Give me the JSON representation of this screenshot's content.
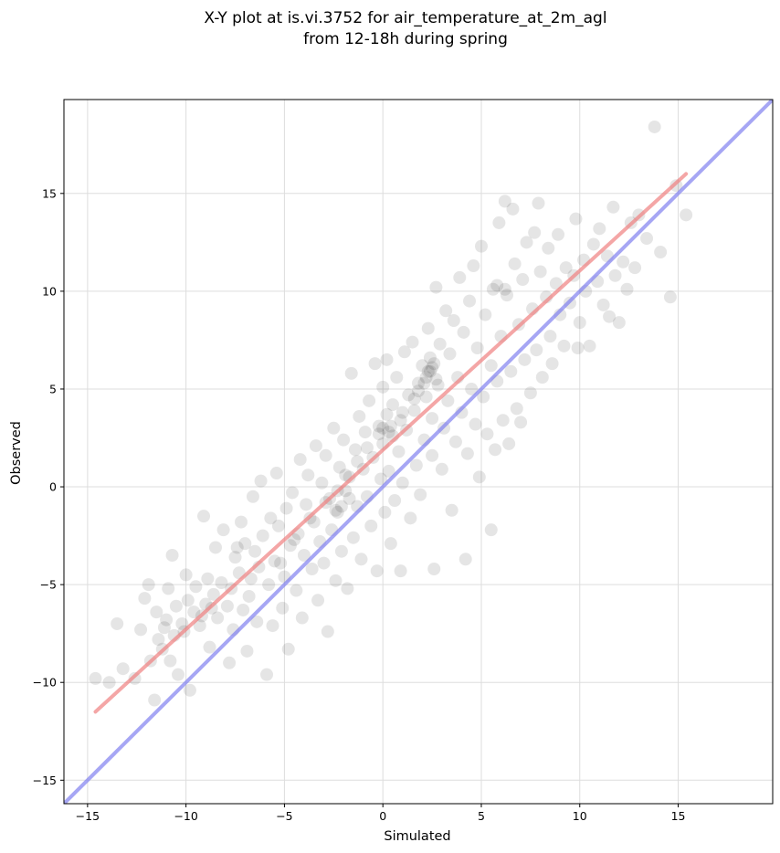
{
  "chart_data": {
    "type": "scatter",
    "title": "X-Y plot at is.vi.3752 for air_temperature_at_2m_agl",
    "subtitle": "from 12-18h during spring",
    "xlabel": "Simulated",
    "ylabel": "Observed",
    "xlim": [
      -16.2,
      19.8
    ],
    "ylim": [
      -16.2,
      19.8
    ],
    "x_ticks": [
      -15,
      -10,
      -5,
      0,
      5,
      10,
      15
    ],
    "y_ticks": [
      -15,
      -10,
      -5,
      0,
      5,
      10,
      15
    ],
    "x_tick_labels": [
      "−15",
      "−10",
      "−5",
      "0",
      "5",
      "10",
      "15"
    ],
    "y_tick_labels": [
      "−15",
      "−10",
      "−5",
      "0",
      "5",
      "10",
      "15"
    ],
    "grid": true,
    "legend": "none",
    "colors": {
      "points": "#000000",
      "fit_line": "#f08080",
      "identity_line": "#8080f0",
      "grid": "#dddddd"
    },
    "series": [
      {
        "kind": "points",
        "points": [
          [
            -14.6,
            -9.8
          ],
          [
            -13.9,
            -10.0
          ],
          [
            -13.5,
            -7.0
          ],
          [
            -13.2,
            -9.3
          ],
          [
            -12.6,
            -9.8
          ],
          [
            -12.3,
            -7.3
          ],
          [
            -12.1,
            -5.7
          ],
          [
            -11.9,
            -5.0
          ],
          [
            -11.8,
            -8.9
          ],
          [
            -11.6,
            -10.9
          ],
          [
            -11.5,
            -6.4
          ],
          [
            -11.4,
            -7.8
          ],
          [
            -11.2,
            -8.3
          ],
          [
            -11.1,
            -7.2
          ],
          [
            -11.0,
            -6.8
          ],
          [
            -10.9,
            -5.2
          ],
          [
            -10.8,
            -8.9
          ],
          [
            -10.7,
            -3.5
          ],
          [
            -10.6,
            -7.6
          ],
          [
            -10.5,
            -6.1
          ],
          [
            -10.4,
            -9.6
          ],
          [
            -10.2,
            -7.0
          ],
          [
            -10.0,
            -4.5
          ],
          [
            -9.9,
            -5.8
          ],
          [
            -9.8,
            -10.4
          ],
          [
            -9.6,
            -6.4
          ],
          [
            -9.5,
            -5.1
          ],
          [
            -9.3,
            -7.1
          ],
          [
            -9.1,
            -1.5
          ],
          [
            -9.0,
            -6.0
          ],
          [
            -8.9,
            -4.7
          ],
          [
            -8.8,
            -8.2
          ],
          [
            -8.6,
            -5.5
          ],
          [
            -8.5,
            -3.1
          ],
          [
            -8.4,
            -6.7
          ],
          [
            -8.2,
            -4.9
          ],
          [
            -8.1,
            -2.2
          ],
          [
            -7.9,
            -6.1
          ],
          [
            -7.8,
            -9.0
          ],
          [
            -7.7,
            -5.2
          ],
          [
            -7.6,
            -7.3
          ],
          [
            -7.5,
            -3.6
          ],
          [
            -7.3,
            -4.4
          ],
          [
            -7.2,
            -1.8
          ],
          [
            -7.1,
            -6.3
          ],
          [
            -7.0,
            -2.9
          ],
          [
            -6.9,
            -8.4
          ],
          [
            -6.8,
            -5.6
          ],
          [
            -6.6,
            -0.5
          ],
          [
            -6.5,
            -3.3
          ],
          [
            -6.4,
            -6.9
          ],
          [
            -6.3,
            -4.1
          ],
          [
            -6.2,
            0.3
          ],
          [
            -6.1,
            -2.5
          ],
          [
            -5.9,
            -9.6
          ],
          [
            -5.8,
            -5.0
          ],
          [
            -5.7,
            -1.6
          ],
          [
            -5.6,
            -7.1
          ],
          [
            -5.5,
            -3.8
          ],
          [
            -5.4,
            0.7
          ],
          [
            -5.3,
            -2.0
          ],
          [
            -5.1,
            -6.2
          ],
          [
            -5.0,
            -4.6
          ],
          [
            -4.9,
            -1.1
          ],
          [
            -4.8,
            -8.3
          ],
          [
            -4.7,
            -3.0
          ],
          [
            -4.6,
            -0.3
          ],
          [
            -4.4,
            -5.3
          ],
          [
            -4.3,
            -2.4
          ],
          [
            -4.2,
            1.4
          ],
          [
            -4.1,
            -6.7
          ],
          [
            -4.0,
            -3.5
          ],
          [
            -3.9,
            -0.9
          ],
          [
            -3.8,
            0.6
          ],
          [
            -3.6,
            -4.2
          ],
          [
            -3.5,
            -1.8
          ],
          [
            -3.4,
            2.1
          ],
          [
            -3.3,
            -5.8
          ],
          [
            -3.2,
            -2.8
          ],
          [
            -3.1,
            0.2
          ],
          [
            -3.0,
            -3.9
          ],
          [
            -2.9,
            1.6
          ],
          [
            -2.8,
            -7.4
          ],
          [
            -2.7,
            -0.6
          ],
          [
            -2.6,
            -2.2
          ],
          [
            -2.5,
            3.0
          ],
          [
            -2.4,
            -4.8
          ],
          [
            -2.3,
            -1.3
          ],
          [
            -2.2,
            1.0
          ],
          [
            -2.1,
            -3.3
          ],
          [
            -2.0,
            2.4
          ],
          [
            -1.9,
            -0.2
          ],
          [
            -1.8,
            -5.2
          ],
          [
            -1.7,
            0.5
          ],
          [
            -1.6,
            5.8
          ],
          [
            -1.5,
            -2.6
          ],
          [
            -1.4,
            1.9
          ],
          [
            -1.3,
            -1.0
          ],
          [
            -1.2,
            3.6
          ],
          [
            -1.1,
            -3.7
          ],
          [
            -1.0,
            0.9
          ],
          [
            -0.9,
            2.8
          ],
          [
            -0.8,
            -0.5
          ],
          [
            -0.7,
            4.4
          ],
          [
            -0.6,
            -2.0
          ],
          [
            -0.5,
            1.5
          ],
          [
            -0.4,
            6.3
          ],
          [
            -0.3,
            -4.3
          ],
          [
            -0.2,
            3.1
          ],
          [
            -0.1,
            0.4
          ],
          [
            0.0,
            2.2
          ],
          [
            0.0,
            5.1
          ],
          [
            0.1,
            -1.3
          ],
          [
            0.2,
            3.7
          ],
          [
            0.2,
            6.5
          ],
          [
            0.3,
            0.8
          ],
          [
            0.4,
            -2.9
          ],
          [
            0.5,
            4.2
          ],
          [
            0.5,
            2.6
          ],
          [
            0.6,
            -0.7
          ],
          [
            0.7,
            5.6
          ],
          [
            0.8,
            1.8
          ],
          [
            0.9,
            3.4
          ],
          [
            0.9,
            -4.3
          ],
          [
            1.0,
            0.2
          ],
          [
            1.1,
            6.9
          ],
          [
            1.2,
            2.9
          ],
          [
            1.3,
            4.7
          ],
          [
            1.4,
            -1.6
          ],
          [
            1.5,
            7.4
          ],
          [
            1.6,
            3.9
          ],
          [
            1.7,
            1.1
          ],
          [
            1.8,
            5.3
          ],
          [
            1.9,
            -0.4
          ],
          [
            2.0,
            6.2
          ],
          [
            2.1,
            2.4
          ],
          [
            2.2,
            4.6
          ],
          [
            2.3,
            8.1
          ],
          [
            2.3,
            5.9
          ],
          [
            2.4,
            6.6
          ],
          [
            2.5,
            1.6
          ],
          [
            2.5,
            3.5
          ],
          [
            2.6,
            -4.2
          ],
          [
            2.7,
            10.2
          ],
          [
            2.8,
            5.2
          ],
          [
            2.9,
            7.3
          ],
          [
            3.0,
            0.9
          ],
          [
            3.1,
            3.0
          ],
          [
            3.2,
            9.0
          ],
          [
            3.3,
            4.4
          ],
          [
            3.4,
            6.8
          ],
          [
            3.5,
            -1.2
          ],
          [
            3.6,
            8.5
          ],
          [
            3.7,
            2.3
          ],
          [
            3.8,
            5.6
          ],
          [
            3.9,
            10.7
          ],
          [
            4.0,
            3.8
          ],
          [
            4.1,
            7.9
          ],
          [
            4.2,
            -3.7
          ],
          [
            4.3,
            1.7
          ],
          [
            4.4,
            9.5
          ],
          [
            4.5,
            5.0
          ],
          [
            4.6,
            11.3
          ],
          [
            4.7,
            3.2
          ],
          [
            4.8,
            7.1
          ],
          [
            4.9,
            0.5
          ],
          [
            5.0,
            12.3
          ],
          [
            5.1,
            4.6
          ],
          [
            5.2,
            8.8
          ],
          [
            5.3,
            2.7
          ],
          [
            5.5,
            6.2
          ],
          [
            5.5,
            -2.2
          ],
          [
            5.6,
            10.1
          ],
          [
            5.7,
            1.9
          ],
          [
            5.8,
            5.4
          ],
          [
            5.9,
            13.5
          ],
          [
            6.0,
            7.7
          ],
          [
            6.1,
            3.4
          ],
          [
            6.2,
            14.6
          ],
          [
            6.3,
            9.8
          ],
          [
            6.4,
            2.2
          ],
          [
            6.5,
            5.9
          ],
          [
            6.6,
            14.2
          ],
          [
            6.7,
            11.4
          ],
          [
            6.8,
            4.0
          ],
          [
            6.9,
            8.3
          ],
          [
            7.0,
            3.3
          ],
          [
            7.1,
            10.6
          ],
          [
            7.2,
            6.5
          ],
          [
            7.3,
            12.5
          ],
          [
            7.5,
            4.8
          ],
          [
            7.6,
            9.1
          ],
          [
            7.7,
            13.0
          ],
          [
            7.8,
            7.0
          ],
          [
            7.9,
            14.5
          ],
          [
            8.0,
            11.0
          ],
          [
            8.1,
            5.6
          ],
          [
            8.3,
            9.7
          ],
          [
            8.4,
            12.2
          ],
          [
            8.5,
            7.7
          ],
          [
            8.6,
            6.3
          ],
          [
            8.8,
            10.4
          ],
          [
            8.9,
            12.9
          ],
          [
            9.0,
            8.8
          ],
          [
            9.2,
            7.2
          ],
          [
            9.3,
            11.2
          ],
          [
            9.5,
            9.4
          ],
          [
            9.7,
            10.8
          ],
          [
            9.8,
            13.7
          ],
          [
            9.9,
            7.1
          ],
          [
            10.0,
            8.4
          ],
          [
            10.2,
            11.6
          ],
          [
            10.3,
            10.0
          ],
          [
            10.5,
            7.2
          ],
          [
            10.7,
            12.4
          ],
          [
            10.9,
            10.5
          ],
          [
            11.0,
            13.2
          ],
          [
            11.2,
            9.3
          ],
          [
            11.4,
            11.8
          ],
          [
            11.5,
            8.7
          ],
          [
            11.7,
            14.3
          ],
          [
            11.8,
            10.8
          ],
          [
            12.0,
            8.4
          ],
          [
            12.2,
            11.5
          ],
          [
            12.4,
            10.1
          ],
          [
            12.6,
            13.5
          ],
          [
            12.8,
            11.2
          ],
          [
            13.0,
            13.9
          ],
          [
            13.4,
            12.7
          ],
          [
            13.8,
            18.4
          ],
          [
            14.1,
            12.0
          ],
          [
            14.6,
            9.7
          ],
          [
            14.9,
            15.4
          ],
          [
            15.4,
            13.9
          ],
          [
            -7.4,
            -3.1
          ],
          [
            -6.7,
            -4.7
          ],
          [
            -5.2,
            -3.9
          ],
          [
            -4.5,
            -2.7
          ],
          [
            -3.7,
            -1.6
          ],
          [
            -2.9,
            -0.8
          ],
          [
            -2.3,
            -0.2
          ],
          [
            -1.9,
            0.6
          ],
          [
            -1.3,
            1.3
          ],
          [
            -0.8,
            2.0
          ],
          [
            -0.2,
            2.7
          ],
          [
            0.4,
            3.1
          ],
          [
            1.0,
            3.8
          ],
          [
            1.6,
            4.5
          ],
          [
            2.1,
            5.3
          ],
          [
            2.4,
            5.9
          ],
          [
            2.6,
            6.3
          ],
          [
            2.2,
            5.6
          ],
          [
            2.5,
            6.1
          ],
          [
            2.7,
            5.5
          ],
          [
            1.8,
            4.9
          ],
          [
            -2.1,
            -1.0
          ],
          [
            -1.7,
            -0.6
          ],
          [
            -2.4,
            -1.2
          ],
          [
            0.0,
            3.0
          ],
          [
            0.3,
            2.8
          ],
          [
            5.8,
            10.3
          ],
          [
            6.2,
            10.1
          ],
          [
            -8.7,
            -6.2
          ],
          [
            -9.2,
            -6.6
          ],
          [
            -10.1,
            -7.4
          ]
        ]
      },
      {
        "kind": "fit_line",
        "x": [
          -14.6,
          15.4
        ],
        "y": [
          -11.5,
          16.0
        ]
      },
      {
        "kind": "identity_line",
        "x": [
          -16.2,
          19.8
        ],
        "y": [
          -16.2,
          19.8
        ]
      }
    ]
  }
}
